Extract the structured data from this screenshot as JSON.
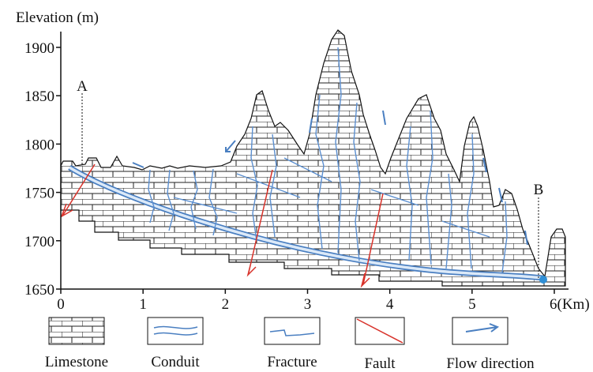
{
  "axis": {
    "y_title": "Elevation (m)",
    "ylim": [
      1650,
      1900
    ],
    "xlim": [
      0,
      6
    ],
    "y_ticks": [
      1650,
      1700,
      1750,
      1800,
      1850,
      1900
    ],
    "x_ticks": [
      0,
      1,
      2,
      3,
      4,
      5,
      {
        "value": 6,
        "label": "6(Km)"
      }
    ]
  },
  "points": [
    "A",
    "B"
  ],
  "legend": [
    "Limestone",
    "Conduit",
    "Fracture",
    "Fault",
    "Flow direction"
  ]
}
